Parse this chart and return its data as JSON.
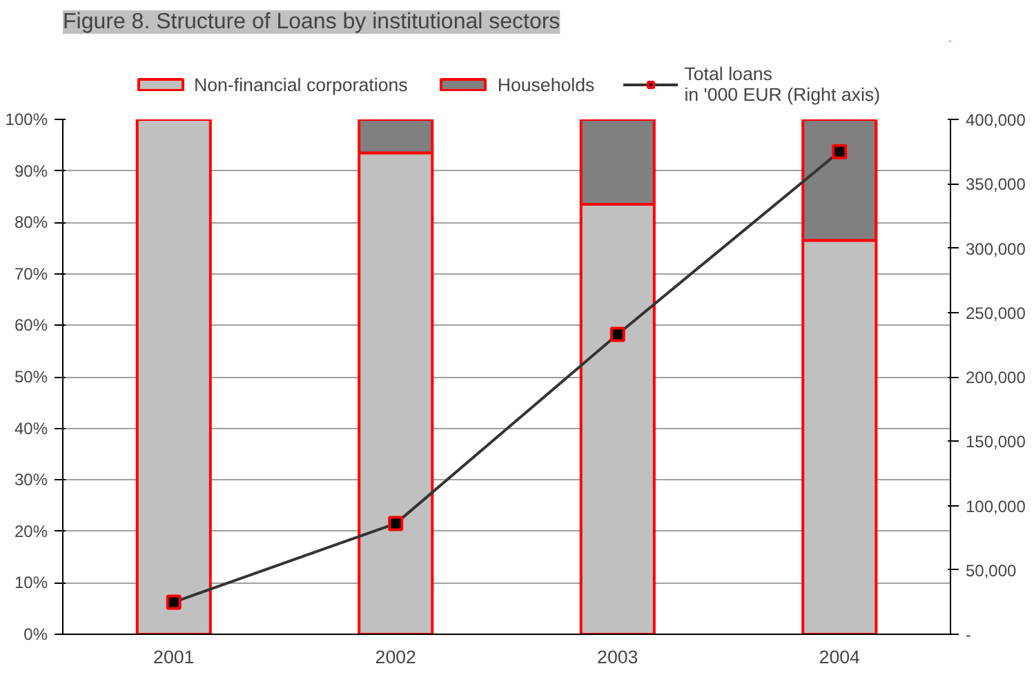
{
  "chart_data": {
    "type": "bar",
    "title": "Figure 8. Structure of Loans by institutional sectors",
    "categories": [
      "2001",
      "2002",
      "2003",
      "2004"
    ],
    "stacked": true,
    "series": [
      {
        "name": "Non-financial corporations",
        "color": "#c0c0c0",
        "values": [
          100,
          93.5,
          83.5,
          76.5
        ]
      },
      {
        "name": "Households",
        "color": "#808080",
        "values": [
          0,
          6.5,
          16.5,
          23.5
        ]
      },
      {
        "name": "Total loans\nin '000 EUR (Right axis)",
        "type": "line",
        "axis": "y2",
        "color": "#333333",
        "marker": "square",
        "values": [
          25000,
          86000,
          233000,
          375000
        ]
      }
    ],
    "ylim": [
      0,
      100
    ],
    "yticks": [
      {
        "value": 0,
        "label": "0%"
      },
      {
        "value": 10,
        "label": "10%"
      },
      {
        "value": 20,
        "label": "20%"
      },
      {
        "value": 30,
        "label": "30%"
      },
      {
        "value": 40,
        "label": "40%"
      },
      {
        "value": 50,
        "label": "50%"
      },
      {
        "value": 60,
        "label": "60%"
      },
      {
        "value": 70,
        "label": "70%"
      },
      {
        "value": 80,
        "label": "80%"
      },
      {
        "value": 90,
        "label": "90%"
      },
      {
        "value": 100,
        "label": "100%"
      }
    ],
    "y2lim": [
      0,
      400000
    ],
    "y2ticks": [
      {
        "value": 0,
        "label": "-"
      },
      {
        "value": 50000,
        "label": "50,000"
      },
      {
        "value": 100000,
        "label": "100,000"
      },
      {
        "value": 150000,
        "label": "150,000"
      },
      {
        "value": 200000,
        "label": "200,000"
      },
      {
        "value": 250000,
        "label": "250,000"
      },
      {
        "value": 300000,
        "label": "300,000"
      },
      {
        "value": 350000,
        "label": "350,000"
      },
      {
        "value": 400000,
        "label": "400,000"
      }
    ],
    "grid": "y",
    "legend": "top"
  }
}
